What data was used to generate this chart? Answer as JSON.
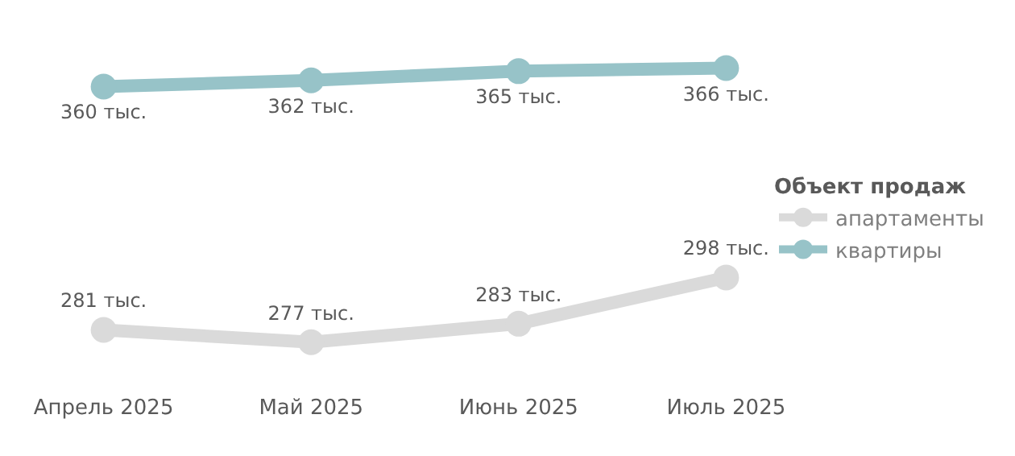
{
  "chart_data": {
    "type": "line",
    "categories": [
      "Апрель 2025",
      "Май 2025",
      "Июнь 2025",
      "Июль 2025"
    ],
    "series": [
      {
        "name": "апартаменты",
        "color": "#dadada",
        "values": [
          281,
          277,
          283,
          298
        ],
        "value_labels": [
          "281 тыс.",
          "277 тыс.",
          "283 тыс.",
          "298 тыс."
        ]
      },
      {
        "name": "квартиры",
        "color": "#97c3c8",
        "values": [
          360,
          362,
          365,
          366
        ],
        "value_labels": [
          "360 тыс.",
          "362 тыс.",
          "365 тыс.",
          "366 тыс."
        ]
      }
    ],
    "legend_title": "Объект продаж",
    "legend": "right",
    "marker": "circle",
    "line_style": "solid"
  }
}
